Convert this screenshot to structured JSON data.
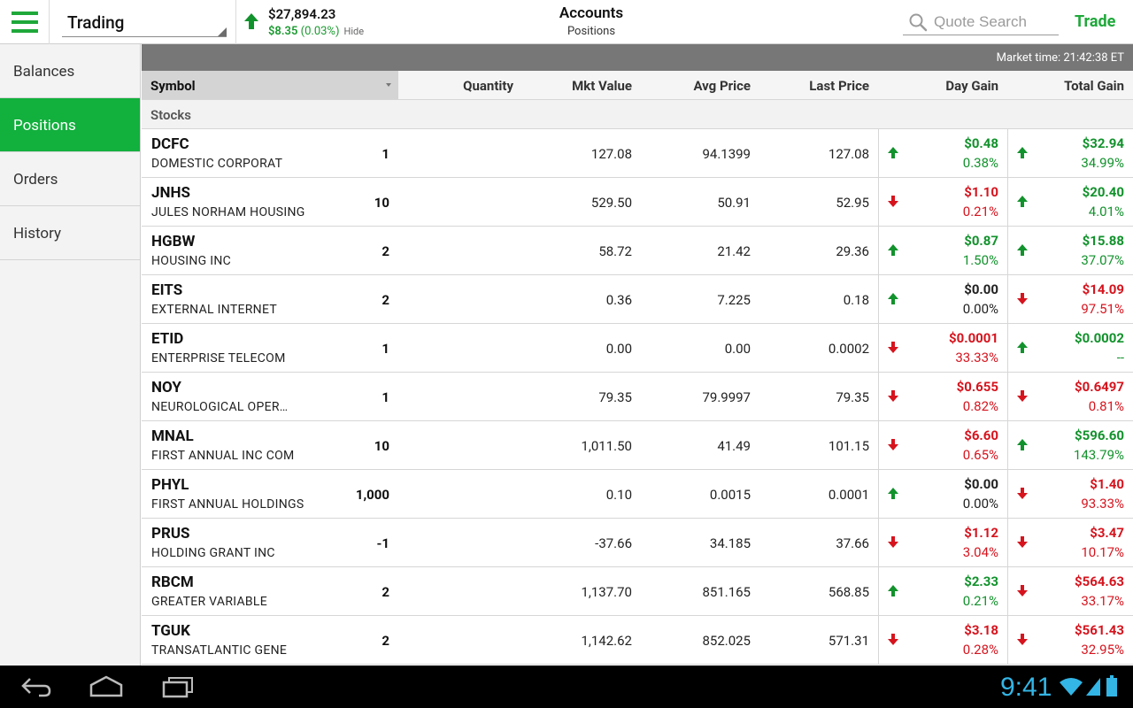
{
  "header": {
    "account_select": "Trading",
    "balance": {
      "amount": "$27,894.23",
      "change": "$8.35",
      "change_pct": "(0.03%)",
      "hide_label": "Hide"
    },
    "title": "Accounts",
    "subtitle": "Positions",
    "search_placeholder": "Quote Search",
    "trade_label": "Trade"
  },
  "sidebar": {
    "items": [
      {
        "label": "Balances",
        "active": false
      },
      {
        "label": "Positions",
        "active": true
      },
      {
        "label": "Orders",
        "active": false
      },
      {
        "label": "History",
        "active": false
      }
    ]
  },
  "main": {
    "market_time": "Market time:  21:42:38 ET",
    "columns": [
      "Symbol",
      "Quantity",
      "Mkt Value",
      "Avg Price",
      "Last Price",
      "Day Gain",
      "Total Gain"
    ],
    "section": "Stocks",
    "rows": [
      {
        "symbol": "DCFC",
        "name": "DOMESTIC CORPORAT",
        "qty": "1",
        "mkt_value": "127.08",
        "avg_price": "94.1399",
        "last_price": "127.08",
        "day_dir": "up",
        "day_amt": "$0.48",
        "day_pct": "0.38%",
        "day_color": "pos",
        "tot_dir": "up",
        "tot_amt": "$32.94",
        "tot_pct": "34.99%",
        "tot_color": "pos"
      },
      {
        "symbol": "JNHS",
        "name": "JULES NORHAM HOUSING",
        "qty": "10",
        "mkt_value": "529.50",
        "avg_price": "50.91",
        "last_price": "52.95",
        "day_dir": "down",
        "day_amt": "$1.10",
        "day_pct": "0.21%",
        "day_color": "neg",
        "tot_dir": "up",
        "tot_amt": "$20.40",
        "tot_pct": "4.01%",
        "tot_color": "pos"
      },
      {
        "symbol": "HGBW",
        "name": "HOUSING INC",
        "qty": "2",
        "mkt_value": "58.72",
        "avg_price": "21.42",
        "last_price": "29.36",
        "day_dir": "up",
        "day_amt": "$0.87",
        "day_pct": "1.50%",
        "day_color": "pos",
        "tot_dir": "up",
        "tot_amt": "$15.88",
        "tot_pct": "37.07%",
        "tot_color": "pos"
      },
      {
        "symbol": "EITS",
        "name": "EXTERNAL INTERNET",
        "qty": "2",
        "mkt_value": "0.36",
        "avg_price": "7.225",
        "last_price": "0.18",
        "day_dir": "up",
        "day_amt": "$0.00",
        "day_pct": "0.00%",
        "day_color": "neu",
        "tot_dir": "down",
        "tot_amt": "$14.09",
        "tot_pct": "97.51%",
        "tot_color": "neg"
      },
      {
        "symbol": "ETID",
        "name": "ENTERPRISE TELECOM",
        "qty": "1",
        "mkt_value": "0.00",
        "avg_price": "0.00",
        "last_price": "0.0002",
        "day_dir": "down",
        "day_amt": "$0.0001",
        "day_pct": "33.33%",
        "day_color": "neg",
        "tot_dir": "up",
        "tot_amt": "$0.0002",
        "tot_pct": "--",
        "tot_color": "pos"
      },
      {
        "symbol": "NOY",
        "name": "NEUROLOGICAL OPER…",
        "qty": "1",
        "mkt_value": "79.35",
        "avg_price": "79.9997",
        "last_price": "79.35",
        "day_dir": "down",
        "day_amt": "$0.655",
        "day_pct": "0.82%",
        "day_color": "neg",
        "tot_dir": "down",
        "tot_amt": "$0.6497",
        "tot_pct": "0.81%",
        "tot_color": "neg"
      },
      {
        "symbol": "MNAL",
        "name": "FIRST ANNUAL INC COM",
        "qty": "10",
        "mkt_value": "1,011.50",
        "avg_price": "41.49",
        "last_price": "101.15",
        "day_dir": "down",
        "day_amt": "$6.60",
        "day_pct": "0.65%",
        "day_color": "neg",
        "tot_dir": "up",
        "tot_amt": "$596.60",
        "tot_pct": "143.79%",
        "tot_color": "pos"
      },
      {
        "symbol": "PHYL",
        "name": "FIRST ANNUAL HOLDINGS",
        "qty": "1,000",
        "mkt_value": "0.10",
        "avg_price": "0.0015",
        "last_price": "0.0001",
        "day_dir": "up",
        "day_amt": "$0.00",
        "day_pct": "0.00%",
        "day_color": "neu",
        "tot_dir": "down",
        "tot_amt": "$1.40",
        "tot_pct": "93.33%",
        "tot_color": "neg"
      },
      {
        "symbol": "PRUS",
        "name": "HOLDING GRANT INC",
        "qty": "-1",
        "mkt_value": "-37.66",
        "avg_price": "34.185",
        "last_price": "37.66",
        "day_dir": "down",
        "day_amt": "$1.12",
        "day_pct": "3.04%",
        "day_color": "neg",
        "tot_dir": "down",
        "tot_amt": "$3.47",
        "tot_pct": "10.17%",
        "tot_color": "neg"
      },
      {
        "symbol": "RBCM",
        "name": "GREATER VARIABLE",
        "qty": "2",
        "mkt_value": "1,137.70",
        "avg_price": "851.165",
        "last_price": "568.85",
        "day_dir": "up",
        "day_amt": "$2.33",
        "day_pct": "0.21%",
        "day_color": "pos",
        "tot_dir": "down",
        "tot_amt": "$564.63",
        "tot_pct": "33.17%",
        "tot_color": "neg"
      },
      {
        "symbol": "TGUK",
        "name": "TRANSATLANTIC GENE",
        "qty": "2",
        "mkt_value": "1,142.62",
        "avg_price": "852.025",
        "last_price": "571.31",
        "day_dir": "down",
        "day_amt": "$3.18",
        "day_pct": "0.28%",
        "day_color": "neg",
        "tot_dir": "down",
        "tot_amt": "$561.43",
        "tot_pct": "32.95%",
        "tot_color": "neg"
      }
    ]
  },
  "system": {
    "clock": "9:41"
  },
  "colors": {
    "accent": "#12b03d",
    "positive": "#12922c",
    "negative": "#d6141e",
    "clock": "#33b5e5"
  }
}
